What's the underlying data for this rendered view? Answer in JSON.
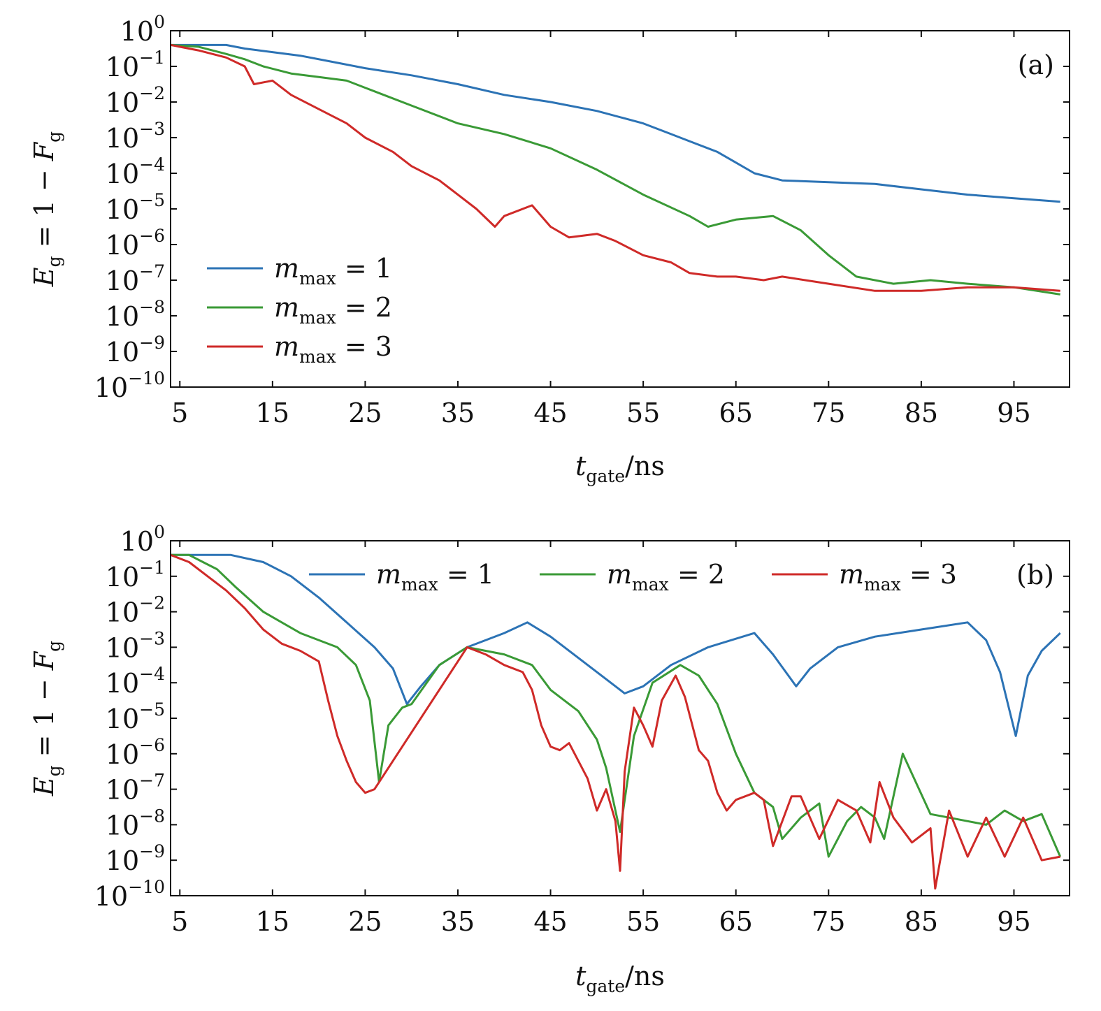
{
  "chart_data": [
    {
      "type": "line",
      "panel_label": "(a)",
      "xlabel": "t_gate/ns",
      "xlabel_main": "t",
      "xlabel_sub": "gate",
      "xlabel_unit": "/ns",
      "ylabel": "E_g = 1 − F_g",
      "ylabel_main": "E",
      "ylabel_sub": "g",
      "ylabel_rest": " = 1 − ",
      "ylabel_main2": "F",
      "ylabel_sub2": "g",
      "xlim": [
        4,
        101
      ],
      "ylim_exp": [
        -10,
        0
      ],
      "yscale": "log",
      "xticks": [
        "5",
        "15",
        "25",
        "35",
        "45",
        "55",
        "65",
        "75",
        "85",
        "95"
      ],
      "ytick_base": "10",
      "ytick_exponents": [
        "0",
        "−1",
        "−2",
        "−3",
        "−4",
        "−5",
        "−6",
        "−7",
        "−8",
        "−9",
        "−10"
      ],
      "legend_position": "lower-left",
      "legend": [
        {
          "base": "m",
          "sub": "max",
          "rest": " = 1"
        },
        {
          "base": "m",
          "sub": "max",
          "rest": " = 2"
        },
        {
          "base": "m",
          "sub": "max",
          "rest": " = 3"
        }
      ],
      "series": [
        {
          "color": "#2c73b5",
          "x": [
            4,
            10,
            12,
            15,
            18,
            22,
            25,
            30,
            35,
            40,
            45,
            50,
            55,
            58,
            60,
            63,
            65,
            67,
            70,
            75,
            80,
            85,
            90,
            95,
            100
          ],
          "log10y": [
            -0.4,
            -0.4,
            -0.5,
            -0.6,
            -0.7,
            -0.9,
            -1.05,
            -1.25,
            -1.5,
            -1.8,
            -2.0,
            -2.25,
            -2.6,
            -2.9,
            -3.1,
            -3.4,
            -3.7,
            -4.0,
            -4.2,
            -4.25,
            -4.3,
            -4.45,
            -4.6,
            -4.7,
            -4.8
          ]
        },
        {
          "color": "#3a9a36",
          "x": [
            4,
            7,
            10,
            12,
            14,
            17,
            20,
            23,
            25,
            27,
            30,
            35,
            40,
            45,
            50,
            55,
            60,
            62,
            65,
            69,
            72,
            75,
            78,
            82,
            86,
            90,
            95,
            100
          ],
          "log10y": [
            -0.4,
            -0.45,
            -0.65,
            -0.8,
            -1.0,
            -1.2,
            -1.3,
            -1.4,
            -1.6,
            -1.8,
            -2.1,
            -2.6,
            -2.9,
            -3.3,
            -3.9,
            -4.6,
            -5.2,
            -5.5,
            -5.3,
            -5.2,
            -5.6,
            -6.3,
            -6.9,
            -7.1,
            -7.0,
            -7.1,
            -7.2,
            -7.4
          ]
        },
        {
          "color": "#cf2a28",
          "x": [
            4,
            7,
            10,
            12,
            13,
            15,
            17,
            20,
            23,
            25,
            28,
            30,
            33,
            35,
            37,
            39,
            40,
            43,
            45,
            47,
            50,
            52,
            55,
            58,
            60,
            63,
            65,
            68,
            70,
            75,
            80,
            85,
            90,
            95,
            100
          ],
          "log10y": [
            -0.4,
            -0.55,
            -0.75,
            -1.0,
            -1.5,
            -1.4,
            -1.8,
            -2.2,
            -2.6,
            -3.0,
            -3.4,
            -3.8,
            -4.2,
            -4.6,
            -5.0,
            -5.5,
            -5.2,
            -4.9,
            -5.5,
            -5.8,
            -5.7,
            -5.9,
            -6.3,
            -6.5,
            -6.8,
            -6.9,
            -6.9,
            -7.0,
            -6.9,
            -7.1,
            -7.3,
            -7.3,
            -7.2,
            -7.2,
            -7.3
          ]
        }
      ]
    },
    {
      "type": "line",
      "panel_label": "(b)",
      "xlabel": "t_gate/ns",
      "xlabel_main": "t",
      "xlabel_sub": "gate",
      "xlabel_unit": "/ns",
      "ylabel": "E_g = 1 − F_g",
      "ylabel_main": "E",
      "ylabel_sub": "g",
      "ylabel_rest": " = 1 − ",
      "ylabel_main2": "F",
      "ylabel_sub2": "g",
      "xlim": [
        4,
        101
      ],
      "ylim_exp": [
        -10,
        0
      ],
      "yscale": "log",
      "xticks": [
        "5",
        "15",
        "25",
        "35",
        "45",
        "55",
        "65",
        "75",
        "85",
        "95"
      ],
      "ytick_base": "10",
      "ytick_exponents": [
        "0",
        "−1",
        "−2",
        "−3",
        "−4",
        "−5",
        "−6",
        "−7",
        "−8",
        "−9",
        "−10"
      ],
      "legend_position": "top-right",
      "legend": [
        {
          "base": "m",
          "sub": "max",
          "rest": " = 1"
        },
        {
          "base": "m",
          "sub": "max",
          "rest": " = 2"
        },
        {
          "base": "m",
          "sub": "max",
          "rest": " = 3"
        }
      ],
      "series": [
        {
          "color": "#2c73b5",
          "x": [
            4,
            8,
            10.5,
            14,
            17,
            20,
            23,
            26,
            28,
            29.5,
            31,
            33,
            36,
            40,
            42.5,
            45,
            48,
            51,
            53,
            55,
            58,
            62,
            67,
            69,
            71.5,
            73,
            76,
            80,
            85,
            90,
            92,
            93.5,
            95.2,
            96.5,
            98,
            100
          ],
          "log10y": [
            -0.4,
            -0.4,
            -0.4,
            -0.6,
            -1.0,
            -1.6,
            -2.3,
            -3.0,
            -3.6,
            -4.6,
            -4.1,
            -3.5,
            -3.0,
            -2.6,
            -2.3,
            -2.7,
            -3.3,
            -3.9,
            -4.3,
            -4.1,
            -3.5,
            -3.0,
            -2.6,
            -3.2,
            -4.1,
            -3.6,
            -3.0,
            -2.7,
            -2.5,
            -2.3,
            -2.8,
            -3.7,
            -5.5,
            -3.8,
            -3.1,
            -2.6
          ]
        },
        {
          "color": "#3a9a36",
          "x": [
            4,
            6,
            7.5,
            9,
            11,
            14,
            18,
            22,
            24,
            25.5,
            26.5,
            27.5,
            29,
            30,
            33,
            36,
            40,
            43,
            45,
            48,
            50,
            51,
            52.5,
            54,
            56,
            59,
            61,
            63,
            65,
            67,
            69,
            70,
            72,
            74,
            75,
            77,
            78.5,
            80,
            81,
            83,
            86,
            88,
            90,
            92,
            94,
            96,
            98,
            100
          ],
          "log10y": [
            -0.4,
            -0.4,
            -0.6,
            -0.8,
            -1.3,
            -2.0,
            -2.6,
            -3.0,
            -3.5,
            -4.5,
            -6.8,
            -5.2,
            -4.7,
            -4.6,
            -3.5,
            -3.0,
            -3.2,
            -3.5,
            -4.2,
            -4.8,
            -5.6,
            -6.4,
            -8.2,
            -5.5,
            -4.0,
            -3.5,
            -3.8,
            -4.6,
            -6.0,
            -7.1,
            -7.5,
            -8.4,
            -7.8,
            -7.4,
            -8.9,
            -7.9,
            -7.5,
            -7.8,
            -8.4,
            -6.0,
            -7.7,
            -7.8,
            -7.9,
            -8.0,
            -7.6,
            -7.9,
            -7.7,
            -8.9
          ]
        },
        {
          "color": "#cf2a28",
          "x": [
            4,
            6,
            8,
            10,
            12,
            14,
            16,
            18,
            20,
            21,
            22,
            23,
            24,
            25,
            26,
            26.5,
            36,
            38,
            40,
            42,
            43,
            44,
            45,
            46,
            47,
            49,
            50,
            51,
            52,
            52.5,
            53,
            54,
            55,
            56,
            57,
            58.5,
            59.5,
            61,
            62,
            63,
            64,
            65,
            67,
            68,
            69,
            71,
            72,
            74,
            76,
            78,
            79.5,
            80.5,
            82,
            84,
            86,
            86.5,
            88,
            90,
            92,
            94,
            96,
            98,
            100
          ],
          "log10y": [
            -0.4,
            -0.6,
            -1.0,
            -1.4,
            -1.9,
            -2.5,
            -2.9,
            -3.1,
            -3.4,
            -4.5,
            -5.5,
            -6.2,
            -6.8,
            -7.1,
            -7.0,
            -6.8,
            -3.0,
            -3.2,
            -3.5,
            -3.7,
            -4.2,
            -5.2,
            -5.8,
            -5.9,
            -5.7,
            -6.7,
            -7.6,
            -7.0,
            -7.9,
            -9.3,
            -6.5,
            -4.7,
            -5.2,
            -5.8,
            -4.5,
            -3.8,
            -4.4,
            -5.9,
            -6.2,
            -7.1,
            -7.6,
            -7.3,
            -7.1,
            -7.3,
            -8.6,
            -7.2,
            -7.2,
            -8.4,
            -7.3,
            -7.6,
            -8.5,
            -6.8,
            -7.8,
            -8.5,
            -8.1,
            -9.8,
            -7.6,
            -8.9,
            -7.8,
            -8.9,
            -7.8,
            -9.0,
            -8.9
          ]
        }
      ]
    }
  ]
}
